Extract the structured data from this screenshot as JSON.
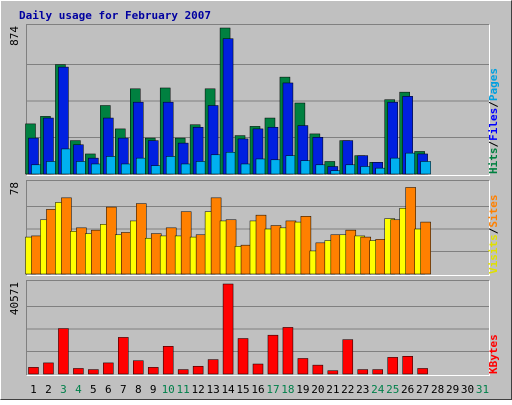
{
  "colors": {
    "background": "#c0c0c0",
    "panel": "#c0c0c0",
    "grid": "#808080",
    "title": "#0000a0",
    "hits_fill": "#008040",
    "files_fill": "#0020e0",
    "pages_fill": "#00b0f0",
    "visits_fill": "#ffff00",
    "sites_fill": "#ff8000",
    "kbytes_fill": "#ff0000",
    "weekend_label": "#00804a",
    "weekday_label": "#000000",
    "pages_label": "#00a0e0",
    "files_label": "#0000ff",
    "hits_label": "#008040",
    "visits_label": "#e0e000",
    "sites_label": "#ff8000",
    "kbytes_label": "#ff0000"
  },
  "chart_data": {
    "type": "bar",
    "title": "Daily usage for February 2007",
    "days": [
      "1",
      "2",
      "3",
      "4",
      "5",
      "6",
      "7",
      "8",
      "9",
      "10",
      "11",
      "12",
      "13",
      "14",
      "15",
      "16",
      "17",
      "18",
      "19",
      "20",
      "21",
      "22",
      "23",
      "24",
      "25",
      "26",
      "27",
      "28",
      "29",
      "30",
      "31"
    ],
    "weekend_days": [
      "3",
      "4",
      "10",
      "11",
      "17",
      "18",
      "24",
      "25",
      "31"
    ],
    "panels": [
      {
        "axis_max_label": "874",
        "ymax": 874,
        "right_labels": [
          "Pages",
          "/",
          "Files",
          "/",
          "Hits"
        ],
        "series": [
          {
            "name": "Hits",
            "values": [
              300,
              345,
              655,
              200,
              120,
              410,
              270,
              510,
              215,
              515,
              215,
              295,
              510,
              874,
              230,
              285,
              335,
              580,
              425,
              240,
              75,
              200,
              110,
              70,
              445,
              490,
              135,
              0,
              0,
              0,
              0
            ]
          },
          {
            "name": "Files",
            "values": [
              215,
              335,
              640,
              175,
              95,
              335,
              215,
              430,
              200,
              430,
              185,
              280,
              410,
              810,
              210,
              270,
              280,
              545,
              290,
              220,
              45,
              200,
              110,
              70,
              430,
              465,
              120,
              0,
              0,
              0,
              0
            ]
          },
          {
            "name": "Pages",
            "values": [
              55,
              75,
              150,
              75,
              60,
              105,
              60,
              95,
              50,
              105,
              60,
              75,
              115,
              130,
              60,
              90,
              85,
              110,
              80,
              55,
              20,
              55,
              45,
              35,
              95,
              125,
              75,
              0,
              0,
              0,
              0
            ]
          }
        ]
      },
      {
        "axis_max_label": "78",
        "ymax": 78,
        "right_labels": [
          "Sites",
          "/",
          "Visits"
        ],
        "series": [
          {
            "name": "Visits",
            "values": [
              32,
              47,
              62,
              37,
              35,
              43,
              34,
              46,
              31,
              33,
              33,
              32,
              54,
              46,
              24,
              46,
              39,
              40,
              45,
              20,
              29,
              34,
              33,
              29,
              48,
              57,
              39,
              0,
              0,
              0,
              0
            ]
          },
          {
            "name": "Sites",
            "values": [
              33,
              56,
              66,
              40,
              38,
              58,
              36,
              61,
              35,
              40,
              54,
              34,
              66,
              47,
              25,
              51,
              42,
              46,
              50,
              27,
              34,
              38,
              32,
              30,
              47,
              75,
              45,
              0,
              0,
              0,
              0
            ]
          }
        ]
      },
      {
        "axis_max_label": "40571",
        "ymax": 40571,
        "right_labels": [
          "KBytes"
        ],
        "series": [
          {
            "name": "KBytes",
            "values": [
              3000,
              5000,
              20500,
              2500,
              2000,
              5000,
              16500,
              6000,
              3000,
              12500,
              2000,
              3500,
              6500,
              40571,
              16000,
              4500,
              17500,
              21000,
              7000,
              4000,
              1500,
              15500,
              2000,
              2000,
              7500,
              8000,
              2500,
              0,
              0,
              0,
              0
            ]
          }
        ]
      }
    ]
  }
}
